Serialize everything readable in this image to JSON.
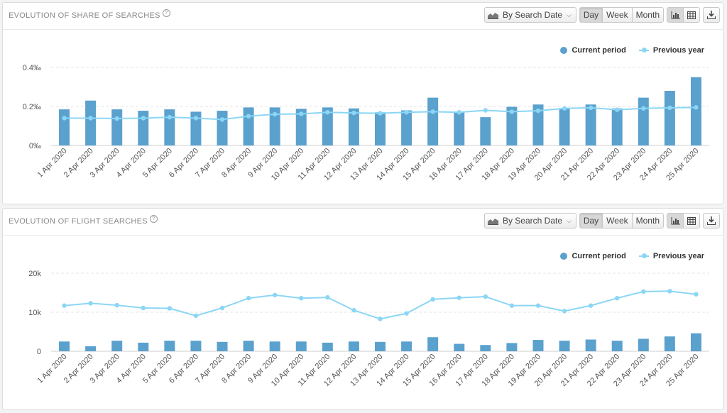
{
  "toolbar": {
    "date_mode": "By Search Date",
    "periods": [
      "Day",
      "Week",
      "Month"
    ],
    "active_period": "Day"
  },
  "legend": {
    "current": "Current period",
    "previous": "Previous year"
  },
  "colors": {
    "current": "#5aa1cd",
    "previous": "#8bd6f5"
  },
  "icons": [
    "area-chart-icon",
    "chevron-down-icon",
    "bar-chart-icon",
    "table-icon",
    "download-icon",
    "help-icon"
  ],
  "panels": [
    {
      "title": "EVOLUTION OF SHARE OF SEARCHES",
      "help": "?"
    },
    {
      "title": "EVOLUTION OF FLIGHT SEARCHES",
      "help": "?"
    }
  ],
  "chart_data": [
    {
      "type": "bar",
      "title": "EVOLUTION OF SHARE OF SEARCHES",
      "categories": [
        "1 Apr 2020",
        "2 Apr 2020",
        "3 Apr 2020",
        "4 Apr 2020",
        "5 Apr 2020",
        "6 Apr 2020",
        "7 Apr 2020",
        "8 Apr 2020",
        "9 Apr 2020",
        "10 Apr 2020",
        "11 Apr 2020",
        "12 Apr 2020",
        "13 Apr 2020",
        "14 Apr 2020",
        "15 Apr 2020",
        "16 Apr 2020",
        "17 Apr 2020",
        "18 Apr 2020",
        "19 Apr 2020",
        "20 Apr 2020",
        "21 Apr 2020",
        "22 Apr 2020",
        "23 Apr 2020",
        "24 Apr 2020",
        "25 Apr 2020"
      ],
      "series": [
        {
          "name": "Current period",
          "kind": "bar",
          "values": [
            0.185,
            0.23,
            0.185,
            0.178,
            0.185,
            0.173,
            0.178,
            0.195,
            0.195,
            0.188,
            0.195,
            0.19,
            0.17,
            0.18,
            0.245,
            0.17,
            0.145,
            0.198,
            0.21,
            0.188,
            0.21,
            0.19,
            0.245,
            0.28,
            0.35
          ]
        },
        {
          "name": "Previous year",
          "kind": "line",
          "values": [
            0.14,
            0.14,
            0.138,
            0.14,
            0.145,
            0.14,
            0.133,
            0.15,
            0.16,
            0.162,
            0.17,
            0.167,
            0.165,
            0.17,
            0.173,
            0.17,
            0.18,
            0.173,
            0.178,
            0.19,
            0.193,
            0.183,
            0.19,
            0.193,
            0.195
          ]
        }
      ],
      "yticks": [
        "0‰",
        "0.2‰",
        "0.4‰"
      ],
      "ylim": [
        0,
        0.4
      ],
      "grid": true,
      "legend_position": "top-right"
    },
    {
      "type": "bar",
      "title": "EVOLUTION OF FLIGHT SEARCHES",
      "categories": [
        "1 Apr 2020",
        "2 Apr 2020",
        "3 Apr 2020",
        "4 Apr 2020",
        "5 Apr 2020",
        "6 Apr 2020",
        "7 Apr 2020",
        "8 Apr 2020",
        "9 Apr 2020",
        "10 Apr 2020",
        "11 Apr 2020",
        "12 Apr 2020",
        "13 Apr 2020",
        "14 Apr 2020",
        "15 Apr 2020",
        "16 Apr 2020",
        "17 Apr 2020",
        "18 Apr 2020",
        "19 Apr 2020",
        "20 Apr 2020",
        "21 Apr 2020",
        "22 Apr 2020",
        "23 Apr 2020",
        "24 Apr 2020",
        "25 Apr 2020"
      ],
      "series": [
        {
          "name": "Current period",
          "kind": "bar",
          "values": [
            2500,
            1300,
            2700,
            2200,
            2700,
            2700,
            2400,
            2700,
            2500,
            2500,
            2200,
            2500,
            2400,
            2500,
            3600,
            1900,
            1600,
            2100,
            2900,
            2700,
            3000,
            2700,
            3200,
            3800,
            4600
          ]
        },
        {
          "name": "Previous year",
          "kind": "line",
          "values": [
            11700,
            12300,
            11800,
            11100,
            11000,
            9100,
            11100,
            13600,
            14400,
            13600,
            13800,
            10500,
            8300,
            9700,
            13300,
            13700,
            14000,
            11700,
            11700,
            10300,
            11700,
            13600,
            15300,
            15400,
            14600
          ]
        }
      ],
      "yticks": [
        "0",
        "10k",
        "20k"
      ],
      "ylim": [
        0,
        20000
      ],
      "grid": true,
      "legend_position": "top-right"
    }
  ]
}
